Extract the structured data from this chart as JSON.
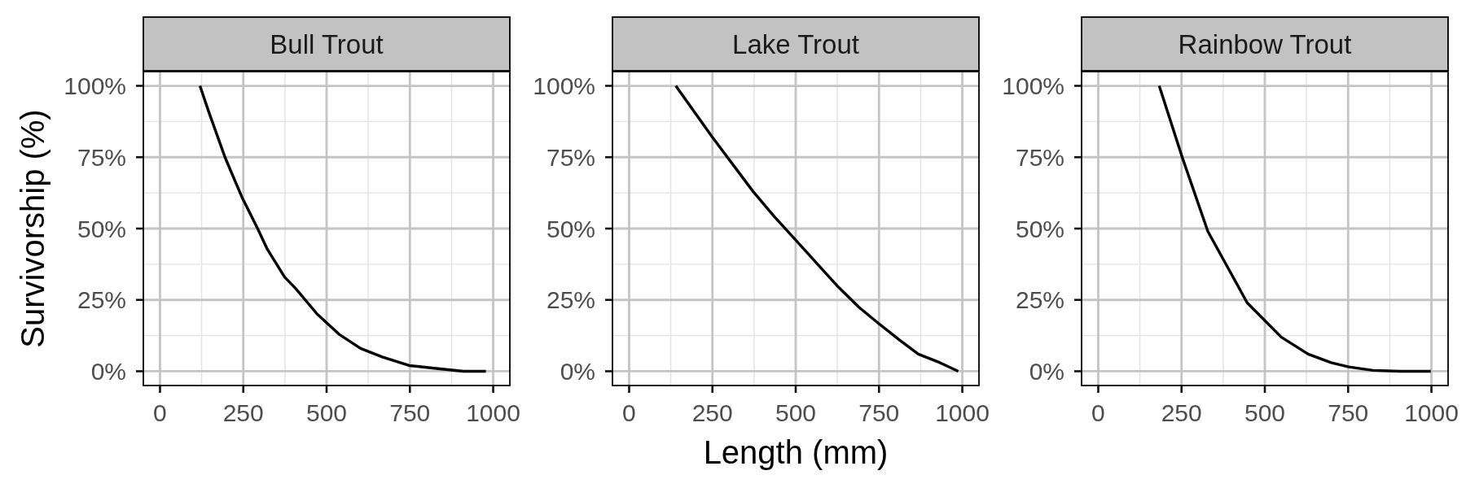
{
  "chart_data": [
    {
      "type": "line",
      "title": "Bull Trout",
      "ylabel": "Survivorship (%)",
      "x": [
        120,
        146,
        195,
        224,
        246,
        293,
        321,
        374,
        407,
        472,
        537,
        602,
        667,
        748,
        829,
        911,
        978
      ],
      "series": [
        {
          "color": "#000000",
          "values": [
            100,
            91,
            75,
            67,
            61,
            50,
            43,
            33,
            29,
            20,
            13,
            8,
            5,
            2,
            1,
            0,
            0
          ]
        }
      ],
      "xlim": [
        -50,
        1050
      ],
      "ylim": [
        -5,
        105
      ],
      "xticks": [
        0,
        250,
        500,
        750,
        1000
      ],
      "yticks": [
        {
          "value": 0,
          "label": "0%"
        },
        {
          "value": 25,
          "label": "25%"
        },
        {
          "value": 50,
          "label": "50%"
        },
        {
          "value": 75,
          "label": "75%"
        },
        {
          "value": 100,
          "label": "100%"
        }
      ],
      "grid": true
    },
    {
      "type": "line",
      "title": "Lake Trout",
      "xlabel": "Length (mm)",
      "x": [
        140,
        250,
        372,
        437,
        500,
        624,
        689,
        746,
        811,
        868,
        933,
        988
      ],
      "series": [
        {
          "color": "#000000",
          "values": [
            100,
            82,
            63,
            54,
            46,
            30,
            22.5,
            17,
            11,
            6,
            3,
            0
          ]
        }
      ],
      "xlim": [
        -50,
        1050
      ],
      "ylim": [
        -5,
        105
      ],
      "xticks": [
        0,
        250,
        500,
        750,
        1000
      ],
      "yticks": [
        {
          "value": 0,
          "label": "0%"
        },
        {
          "value": 25,
          "label": "25%"
        },
        {
          "value": 50,
          "label": "50%"
        },
        {
          "value": 75,
          "label": "75%"
        },
        {
          "value": 100,
          "label": "100%"
        }
      ],
      "grid": true
    },
    {
      "type": "line",
      "title": "Rainbow Trout",
      "x": [
        183,
        252,
        329,
        447,
        549,
        630,
        699,
        752,
        825,
        907,
        998
      ],
      "series": [
        {
          "color": "#000000",
          "values": [
            100,
            75,
            49,
            24,
            12,
            6,
            3,
            1.5,
            0.3,
            0,
            0
          ]
        }
      ],
      "xlim": [
        -50,
        1050
      ],
      "ylim": [
        -5,
        105
      ],
      "xticks": [
        0,
        250,
        500,
        750,
        1000
      ],
      "yticks": [
        {
          "value": 0,
          "label": "0%"
        },
        {
          "value": 25,
          "label": "25%"
        },
        {
          "value": 50,
          "label": "50%"
        },
        {
          "value": 75,
          "label": "75%"
        },
        {
          "value": 100,
          "label": "100%"
        }
      ],
      "grid": true
    }
  ]
}
